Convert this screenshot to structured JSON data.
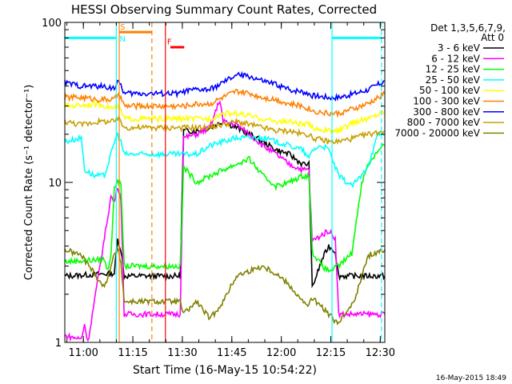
{
  "chart_data": {
    "type": "line",
    "title": "HESSI Observing Summary Count Rates, Corrected",
    "xlabel": "Start Time (16-May-15 10:54:22)",
    "ylabel": "Corrected Count Rate (s⁻¹ detector⁻¹)",
    "yscale": "log",
    "xlim_minutes": [
      0,
      97
    ],
    "ylim": [
      1,
      100
    ],
    "grid": false,
    "legend_position": "top-right outside",
    "x_ticks": [
      {
        "minutes": 5.63,
        "label": "11:00"
      },
      {
        "minutes": 20.63,
        "label": "11:15"
      },
      {
        "minutes": 35.63,
        "label": "11:30"
      },
      {
        "minutes": 50.63,
        "label": "11:45"
      },
      {
        "minutes": 65.63,
        "label": "12:00"
      },
      {
        "minutes": 80.63,
        "label": "12:15"
      },
      {
        "minutes": 95.63,
        "label": "12:30"
      }
    ],
    "y_ticks": [
      {
        "value": 1,
        "label": "1"
      },
      {
        "value": 10,
        "label": "10"
      },
      {
        "value": 100,
        "label": "100"
      }
    ],
    "legend_header": [
      "Det 1,3,5,6,7,9,",
      "Att 0"
    ],
    "series": [
      {
        "name": "3 - 6 keV",
        "color": "#000000",
        "points": [
          [
            0,
            2.6
          ],
          [
            15,
            2.7
          ],
          [
            16,
            4.4
          ],
          [
            17,
            3.8
          ],
          [
            18,
            2.6
          ],
          [
            35,
            2.6
          ],
          [
            36,
            21
          ],
          [
            40,
            21
          ],
          [
            44,
            22
          ],
          [
            48,
            24
          ],
          [
            52,
            22
          ],
          [
            56,
            20
          ],
          [
            60,
            18
          ],
          [
            64,
            16
          ],
          [
            68,
            15
          ],
          [
            72,
            13
          ],
          [
            74,
            13
          ],
          [
            75,
            2.2
          ],
          [
            78,
            3.3
          ],
          [
            80,
            4.0
          ],
          [
            82,
            3.7
          ],
          [
            83,
            2.6
          ],
          [
            97,
            2.6
          ]
        ]
      },
      {
        "name": "6 - 12 keV",
        "color": "#ff00ff",
        "points": [
          [
            0,
            1.1
          ],
          [
            5,
            1.05
          ],
          [
            6,
            1.3
          ],
          [
            7,
            1.0
          ],
          [
            14,
            8.2
          ],
          [
            15,
            7.5
          ],
          [
            16,
            9.5
          ],
          [
            17,
            8
          ],
          [
            18,
            1.5
          ],
          [
            35,
            1.5
          ],
          [
            36,
            19
          ],
          [
            40,
            20
          ],
          [
            44,
            22
          ],
          [
            47,
            33
          ],
          [
            48,
            24
          ],
          [
            52,
            23
          ],
          [
            56,
            20
          ],
          [
            60,
            17
          ],
          [
            64,
            15
          ],
          [
            68,
            13
          ],
          [
            72,
            12
          ],
          [
            74,
            12
          ],
          [
            75,
            4.3
          ],
          [
            80,
            5
          ],
          [
            82,
            4.5
          ],
          [
            83,
            1.5
          ],
          [
            97,
            1.5
          ]
        ]
      },
      {
        "name": "12 - 25 keV",
        "color": "#00ff00",
        "points": [
          [
            0,
            3.2
          ],
          [
            12,
            3.3
          ],
          [
            13,
            2.8
          ],
          [
            14,
            3.6
          ],
          [
            15,
            9.0
          ],
          [
            16,
            10.5
          ],
          [
            17,
            9.5
          ],
          [
            18,
            3.0
          ],
          [
            35,
            3.0
          ],
          [
            36,
            12.5
          ],
          [
            40,
            10
          ],
          [
            44,
            11
          ],
          [
            48,
            12
          ],
          [
            52,
            13
          ],
          [
            56,
            14
          ],
          [
            60,
            11
          ],
          [
            64,
            9.5
          ],
          [
            68,
            10
          ],
          [
            72,
            11
          ],
          [
            74,
            11
          ],
          [
            75,
            3.7
          ],
          [
            78,
            3.0
          ],
          [
            80,
            2.8
          ],
          [
            83,
            3.0
          ],
          [
            87,
            3.6
          ],
          [
            90,
            10
          ],
          [
            92,
            13
          ],
          [
            96,
            17
          ],
          [
            97,
            17
          ]
        ]
      },
      {
        "name": "25 - 50 keV",
        "color": "#00ffff",
        "points": [
          [
            0,
            18
          ],
          [
            5,
            19
          ],
          [
            6,
            12
          ],
          [
            9,
            11
          ],
          [
            12,
            11
          ],
          [
            14,
            15
          ],
          [
            15,
            18
          ],
          [
            16,
            20
          ],
          [
            17,
            18
          ],
          [
            18,
            15
          ],
          [
            35,
            15
          ],
          [
            36,
            15
          ],
          [
            40,
            15
          ],
          [
            44,
            17
          ],
          [
            48,
            18
          ],
          [
            52,
            19
          ],
          [
            56,
            19
          ],
          [
            60,
            19
          ],
          [
            64,
            18
          ],
          [
            68,
            17
          ],
          [
            72,
            16
          ],
          [
            74,
            14
          ],
          [
            75,
            16
          ],
          [
            78,
            17
          ],
          [
            80,
            16
          ],
          [
            83,
            11
          ],
          [
            87,
            9.5
          ],
          [
            90,
            11
          ],
          [
            92,
            13
          ],
          [
            95,
            20
          ],
          [
            97,
            20
          ]
        ]
      },
      {
        "name": "50 - 100 keV",
        "color": "#ffff00",
        "points": [
          [
            0,
            30
          ],
          [
            10,
            31
          ],
          [
            15,
            29
          ],
          [
            16,
            30
          ],
          [
            17,
            28
          ],
          [
            18,
            25
          ],
          [
            35,
            25
          ],
          [
            36,
            25
          ],
          [
            40,
            25
          ],
          [
            44,
            25
          ],
          [
            48,
            27
          ],
          [
            52,
            27
          ],
          [
            56,
            26
          ],
          [
            60,
            25
          ],
          [
            64,
            24
          ],
          [
            68,
            24
          ],
          [
            72,
            23
          ],
          [
            74,
            23
          ],
          [
            75,
            22
          ],
          [
            80,
            21
          ],
          [
            83,
            21
          ],
          [
            88,
            24
          ],
          [
            92,
            25
          ],
          [
            97,
            28
          ]
        ]
      },
      {
        "name": "100 - 300 keV",
        "color": "#ff8000",
        "points": [
          [
            0,
            34
          ],
          [
            5,
            34
          ],
          [
            10,
            33
          ],
          [
            15,
            33
          ],
          [
            16,
            35
          ],
          [
            17,
            34
          ],
          [
            18,
            30
          ],
          [
            35,
            30
          ],
          [
            36,
            30
          ],
          [
            40,
            31
          ],
          [
            44,
            31
          ],
          [
            48,
            34
          ],
          [
            52,
            37
          ],
          [
            56,
            36
          ],
          [
            60,
            34
          ],
          [
            64,
            33
          ],
          [
            68,
            31
          ],
          [
            72,
            30
          ],
          [
            74,
            29
          ],
          [
            75,
            28
          ],
          [
            80,
            27
          ],
          [
            83,
            27
          ],
          [
            88,
            29
          ],
          [
            92,
            31
          ],
          [
            97,
            36
          ]
        ]
      },
      {
        "name": "300 - 800 keV",
        "color": "#0000ff",
        "points": [
          [
            0,
            42
          ],
          [
            5,
            40
          ],
          [
            10,
            40
          ],
          [
            15,
            39
          ],
          [
            16,
            42
          ],
          [
            17,
            41
          ],
          [
            18,
            36
          ],
          [
            35,
            36
          ],
          [
            36,
            37
          ],
          [
            40,
            38
          ],
          [
            44,
            38
          ],
          [
            48,
            42
          ],
          [
            52,
            47
          ],
          [
            56,
            46
          ],
          [
            60,
            43
          ],
          [
            64,
            41
          ],
          [
            68,
            38
          ],
          [
            72,
            37
          ],
          [
            74,
            36
          ],
          [
            75,
            35
          ],
          [
            80,
            34
          ],
          [
            83,
            34
          ],
          [
            88,
            36
          ],
          [
            92,
            38
          ],
          [
            97,
            43
          ]
        ]
      },
      {
        "name": "800 - 7000 keV",
        "color": "#c8a000",
        "points": [
          [
            0,
            24
          ],
          [
            5,
            23
          ],
          [
            10,
            24
          ],
          [
            15,
            24
          ],
          [
            16,
            25
          ],
          [
            17,
            24
          ],
          [
            18,
            22
          ],
          [
            35,
            22
          ],
          [
            36,
            22
          ],
          [
            40,
            22
          ],
          [
            44,
            22
          ],
          [
            48,
            23
          ],
          [
            52,
            24
          ],
          [
            56,
            23
          ],
          [
            60,
            22
          ],
          [
            64,
            21
          ],
          [
            68,
            21
          ],
          [
            72,
            20
          ],
          [
            74,
            20
          ],
          [
            75,
            19
          ],
          [
            80,
            18
          ],
          [
            83,
            18
          ],
          [
            88,
            19
          ],
          [
            92,
            20
          ],
          [
            97,
            21
          ]
        ]
      },
      {
        "name": "7000 - 20000 keV",
        "color": "#808000",
        "points": [
          [
            0,
            3.8
          ],
          [
            5,
            3.5
          ],
          [
            9,
            2.7
          ],
          [
            12,
            2.2
          ],
          [
            14,
            3.0
          ],
          [
            15,
            3.5
          ],
          [
            16,
            3.8
          ],
          [
            17,
            3.2
          ],
          [
            18,
            1.8
          ],
          [
            35,
            1.8
          ],
          [
            36,
            1.5
          ],
          [
            40,
            1.8
          ],
          [
            44,
            1.4
          ],
          [
            48,
            1.8
          ],
          [
            52,
            2.6
          ],
          [
            56,
            2.8
          ],
          [
            60,
            3.0
          ],
          [
            64,
            2.7
          ],
          [
            68,
            2.3
          ],
          [
            72,
            1.8
          ],
          [
            74,
            1.7
          ],
          [
            75,
            1.9
          ],
          [
            80,
            1.5
          ],
          [
            83,
            1.3
          ],
          [
            88,
            1.9
          ],
          [
            92,
            3.5
          ],
          [
            97,
            3.8
          ]
        ]
      }
    ],
    "flag_lines": [
      {
        "name": "night-left",
        "color": "#00ffff",
        "style": "solid",
        "minutes": 15.6
      },
      {
        "name": "saa-start",
        "color": "#ff8000",
        "style": "solid",
        "minutes": 16.5
      },
      {
        "name": "saa-end",
        "color": "#ff8000",
        "style": "dashed",
        "minutes": 26.4
      },
      {
        "name": "night-right",
        "color": "#00ffff",
        "style": "solid",
        "minutes": 81.0
      },
      {
        "name": "end-marker",
        "color": "#00ffff",
        "style": "dashed",
        "minutes": 96.0
      },
      {
        "name": "flare-start",
        "color": "#ff0000",
        "style": "solid",
        "minutes": 30.5
      }
    ],
    "flag_bars": [
      {
        "name": "cyan-night-bar",
        "color": "#00ffff",
        "from": 0,
        "to": 15.6,
        "value": 80
      },
      {
        "name": "saa-bar",
        "color": "#ff8000",
        "from": 16.5,
        "to": 26.4,
        "value": 87
      },
      {
        "name": "flare-bar",
        "color": "#ff0000",
        "from": 32.0,
        "to": 36.2,
        "value": 70
      },
      {
        "name": "cyan-night-bar-2",
        "color": "#00ffff",
        "from": 81.0,
        "to": 96.0,
        "value": 80
      }
    ],
    "flag_labels": [
      {
        "name": "s-label",
        "text": "S",
        "color": "#ff8000"
      },
      {
        "name": "n-label",
        "text": "N",
        "color": "#00ffff"
      },
      {
        "name": "f-label",
        "text": "F",
        "color": "#ff0000"
      }
    ],
    "timestamp": "16-May-2015 18:49"
  }
}
